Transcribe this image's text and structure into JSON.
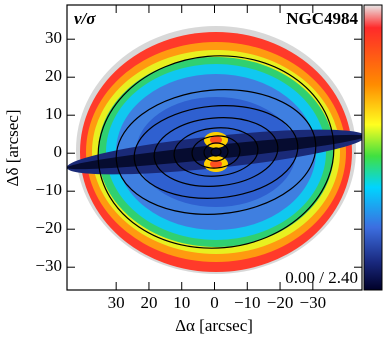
{
  "chart_data": {
    "type": "map",
    "title": "NGC4984",
    "label": "v/σ",
    "annotation": "0.00 / 2.40",
    "x_label": "Δα [arcsec]",
    "y_label": "Δδ [arcsec]",
    "xlim": [
      45,
      -45
    ],
    "ylim": [
      -36,
      39
    ],
    "xticks": [
      30,
      20,
      10,
      0,
      {
        "value": -10,
        "label": "−10"
      },
      {
        "value": -20,
        "label": "−20"
      },
      {
        "value": -30,
        "label": "−30"
      }
    ],
    "yticks": [
      30,
      20,
      10,
      0,
      {
        "value": -10,
        "label": "−10"
      },
      {
        "value": -20,
        "label": "−20"
      },
      {
        "value": -30,
        "label": "−30"
      }
    ]
  }
}
